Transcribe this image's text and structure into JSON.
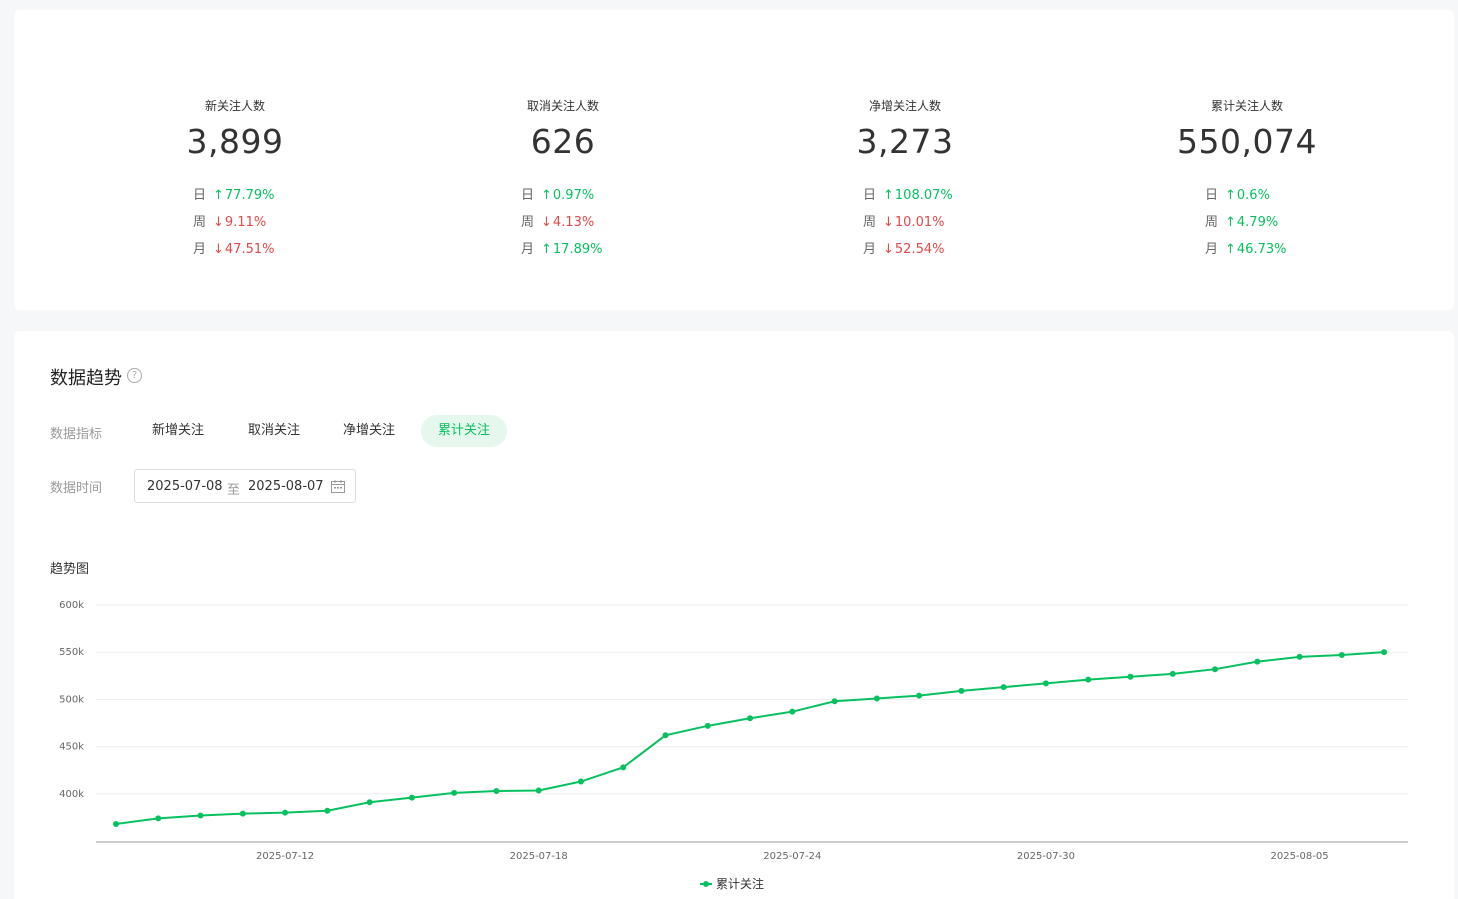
{
  "stats": [
    {
      "label": "新关注人数",
      "value": "3,899",
      "rows": [
        {
          "period": "日",
          "direction": "up",
          "arrow": "↑",
          "change": "77.79%"
        },
        {
          "period": "周",
          "direction": "down",
          "arrow": "↓",
          "change": "9.11%"
        },
        {
          "period": "月",
          "direction": "down",
          "arrow": "↓",
          "change": "47.51%"
        }
      ]
    },
    {
      "label": "取消关注人数",
      "value": "626",
      "rows": [
        {
          "period": "日",
          "direction": "up",
          "arrow": "↑",
          "change": "0.97%"
        },
        {
          "period": "周",
          "direction": "down",
          "arrow": "↓",
          "change": "4.13%"
        },
        {
          "period": "月",
          "direction": "up",
          "arrow": "↑",
          "change": "17.89%"
        }
      ]
    },
    {
      "label": "净增关注人数",
      "value": "3,273",
      "rows": [
        {
          "period": "日",
          "direction": "up",
          "arrow": "↑",
          "change": "108.07%"
        },
        {
          "period": "周",
          "direction": "down",
          "arrow": "↓",
          "change": "10.01%"
        },
        {
          "period": "月",
          "direction": "down",
          "arrow": "↓",
          "change": "52.54%"
        }
      ]
    },
    {
      "label": "累计关注人数",
      "value": "550,074",
      "rows": [
        {
          "period": "日",
          "direction": "up",
          "arrow": "↑",
          "change": "0.6%"
        },
        {
          "period": "周",
          "direction": "up",
          "arrow": "↑",
          "change": "4.79%"
        },
        {
          "period": "月",
          "direction": "up",
          "arrow": "↑",
          "change": "46.73%"
        }
      ]
    }
  ],
  "trend": {
    "title": "数据趋势",
    "help_icon": "?",
    "metric_label": "数据指标",
    "metrics": [
      "新增关注",
      "取消关注",
      "净增关注",
      "累计关注"
    ],
    "active_metric": "累计关注",
    "time_label": "数据时间",
    "date_start": "2025-07-08",
    "date_sep": "至",
    "date_end": "2025-08-07",
    "chart_title": "趋势图"
  },
  "colors": {
    "accent": "#07c160",
    "down": "#e04a4a"
  },
  "icons": {
    "help": "question-circle-icon",
    "calendar": "calendar-icon"
  },
  "chart_data": {
    "type": "line",
    "title": "趋势图",
    "xlabel": "",
    "ylabel": "",
    "x_ticks": [
      "2025-07-12",
      "2025-07-18",
      "2025-07-24",
      "2025-07-30",
      "2025-08-05"
    ],
    "y_ticks": [
      "400k",
      "450k",
      "500k",
      "550k",
      "600k"
    ],
    "ylim": [
      350000,
      600000
    ],
    "grid": true,
    "legend_position": "bottom",
    "x": [
      "2025-07-08",
      "2025-07-09",
      "2025-07-10",
      "2025-07-11",
      "2025-07-12",
      "2025-07-13",
      "2025-07-14",
      "2025-07-15",
      "2025-07-16",
      "2025-07-17",
      "2025-07-18",
      "2025-07-19",
      "2025-07-20",
      "2025-07-21",
      "2025-07-22",
      "2025-07-23",
      "2025-07-24",
      "2025-07-25",
      "2025-07-26",
      "2025-07-27",
      "2025-07-28",
      "2025-07-29",
      "2025-07-30",
      "2025-07-31",
      "2025-08-01",
      "2025-08-02",
      "2025-08-03",
      "2025-08-04",
      "2025-08-05",
      "2025-08-06",
      "2025-08-07"
    ],
    "series": [
      {
        "name": "累计关注",
        "color": "#07c160",
        "values": [
          368000,
          374000,
          377000,
          379000,
          380000,
          382000,
          391000,
          396000,
          401000,
          403000,
          403500,
          413000,
          428000,
          462000,
          472000,
          480000,
          487000,
          498000,
          501000,
          504000,
          509000,
          513000,
          517000,
          521000,
          524000,
          527000,
          532000,
          540000,
          545000,
          547000,
          550074
        ]
      }
    ]
  }
}
